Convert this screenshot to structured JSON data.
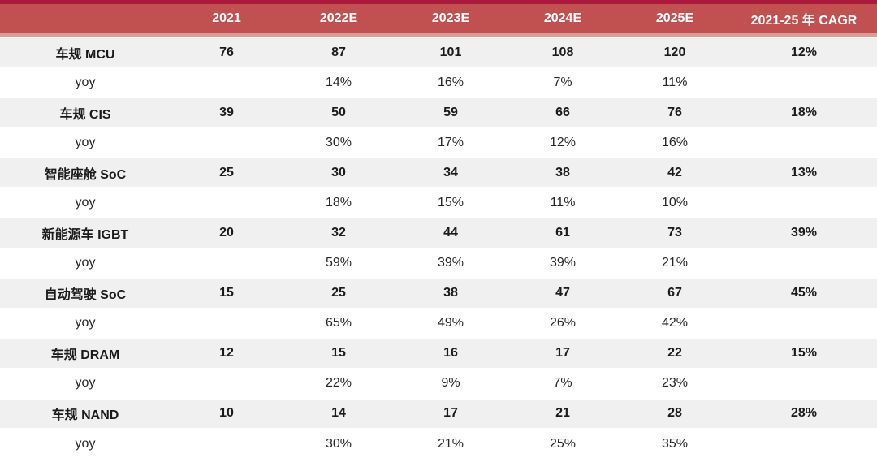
{
  "chart_data": {
    "type": "table",
    "title": "",
    "columns": [
      "",
      "2021",
      "2022E",
      "2023E",
      "2024E",
      "2025E",
      "2021-25 年 CAGR"
    ],
    "rows": [
      {
        "label": "车规 MCU",
        "kind": "category",
        "values": [
          "76",
          "87",
          "101",
          "108",
          "120",
          "12%"
        ]
      },
      {
        "label": "yoy",
        "kind": "yoy",
        "values": [
          "",
          "14%",
          "16%",
          "7%",
          "11%",
          ""
        ]
      },
      {
        "label": "车规 CIS",
        "kind": "category",
        "values": [
          "39",
          "50",
          "59",
          "66",
          "76",
          "18%"
        ]
      },
      {
        "label": "yoy",
        "kind": "yoy",
        "values": [
          "",
          "30%",
          "17%",
          "12%",
          "16%",
          ""
        ]
      },
      {
        "label": "智能座舱 SoC",
        "kind": "category",
        "values": [
          "25",
          "30",
          "34",
          "38",
          "42",
          "13%"
        ]
      },
      {
        "label": "yoy",
        "kind": "yoy",
        "values": [
          "",
          "18%",
          "15%",
          "11%",
          "10%",
          ""
        ]
      },
      {
        "label": "新能源车 IGBT",
        "kind": "category",
        "values": [
          "20",
          "32",
          "44",
          "61",
          "73",
          "39%"
        ]
      },
      {
        "label": "yoy",
        "kind": "yoy",
        "values": [
          "",
          "59%",
          "39%",
          "39%",
          "21%",
          ""
        ]
      },
      {
        "label": "自动驾驶 SoC",
        "kind": "category",
        "values": [
          "15",
          "25",
          "38",
          "47",
          "67",
          "45%"
        ]
      },
      {
        "label": "yoy",
        "kind": "yoy",
        "values": [
          "",
          "65%",
          "49%",
          "26%",
          "42%",
          ""
        ]
      },
      {
        "label": "车规 DRAM",
        "kind": "category",
        "values": [
          "12",
          "15",
          "16",
          "17",
          "22",
          "15%"
        ]
      },
      {
        "label": "yoy",
        "kind": "yoy",
        "values": [
          "",
          "22%",
          "9%",
          "7%",
          "23%",
          ""
        ]
      },
      {
        "label": "车规 NAND",
        "kind": "category",
        "values": [
          "10",
          "14",
          "17",
          "21",
          "28",
          "28%"
        ]
      },
      {
        "label": "yoy",
        "kind": "yoy",
        "values": [
          "",
          "30%",
          "21%",
          "25%",
          "35%",
          ""
        ]
      }
    ],
    "layout_hints": {
      "header_background": "#c05150",
      "header_top_stripe": "#ab1a3b",
      "header_bottom_stripe": "#d99c9b",
      "category_row_background": "#f0f0f0",
      "yoy_row_background": "#ffffff",
      "header_text_color": "#ffffff",
      "body_text_color": "#1a1a1a",
      "grid": false
    }
  }
}
